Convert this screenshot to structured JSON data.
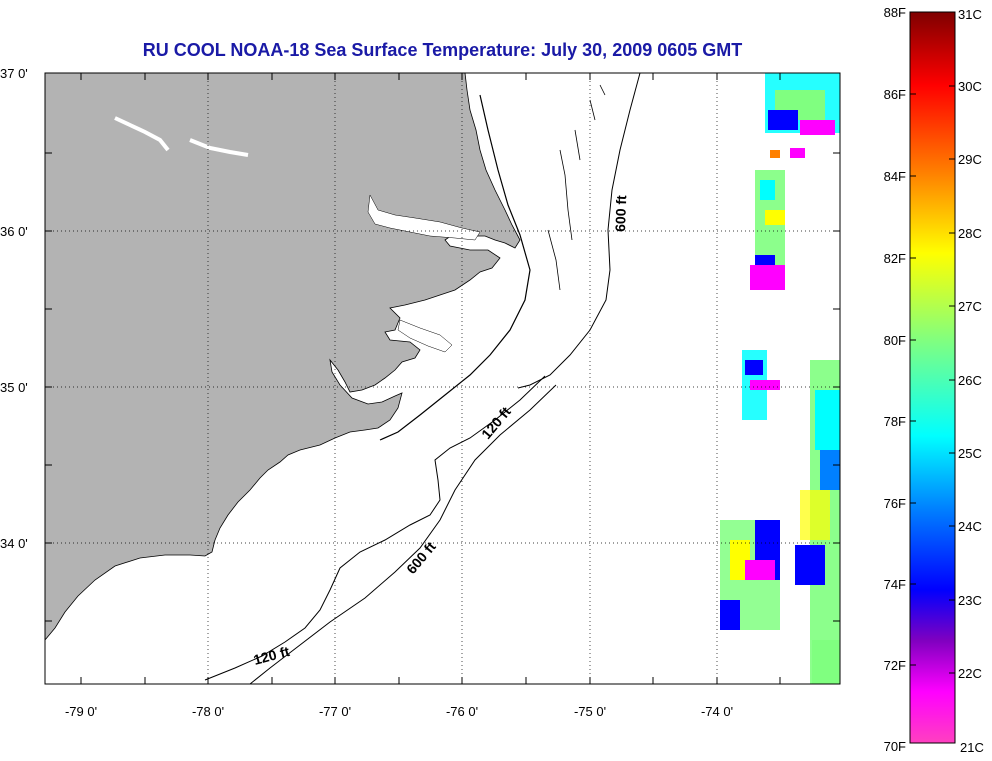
{
  "title": "RU COOL  NOAA-18  Sea Surface Temperature:  July 30, 2009 0605 GMT",
  "map": {
    "lon_range": [
      -79.3,
      -73.0
    ],
    "lat_range": [
      33.1,
      37.0
    ],
    "lon_ticks": [
      "-79 0'",
      "-78 0'",
      "-77 0'",
      "-76 0'",
      "-75 0'",
      "-74 0'"
    ],
    "lat_ticks": [
      "37 0'",
      "36 0'",
      "35 0'",
      "34 0'"
    ],
    "contour_labels": [
      {
        "label": "600 ft"
      },
      {
        "label": "120 ft"
      },
      {
        "label": "600 ft"
      },
      {
        "label": "120 ft"
      }
    ],
    "land_color": "#b3b3b3",
    "grid": true
  },
  "colorbar": {
    "fahrenheit_labels": [
      "88F",
      "86F",
      "84F",
      "82F",
      "80F",
      "78F",
      "76F",
      "74F",
      "72F",
      "70F"
    ],
    "celsius_labels": [
      "31C",
      "30C",
      "29C",
      "28C",
      "27C",
      "26C",
      "25C",
      "24C",
      "23C",
      "22C",
      "21C"
    ],
    "colors": [
      "#7f0000",
      "#ff0000",
      "#ff8000",
      "#ffff00",
      "#80ff80",
      "#00ffff",
      "#0080ff",
      "#0000ff",
      "#8000c0",
      "#ff00ff",
      "#ff40c0"
    ]
  }
}
